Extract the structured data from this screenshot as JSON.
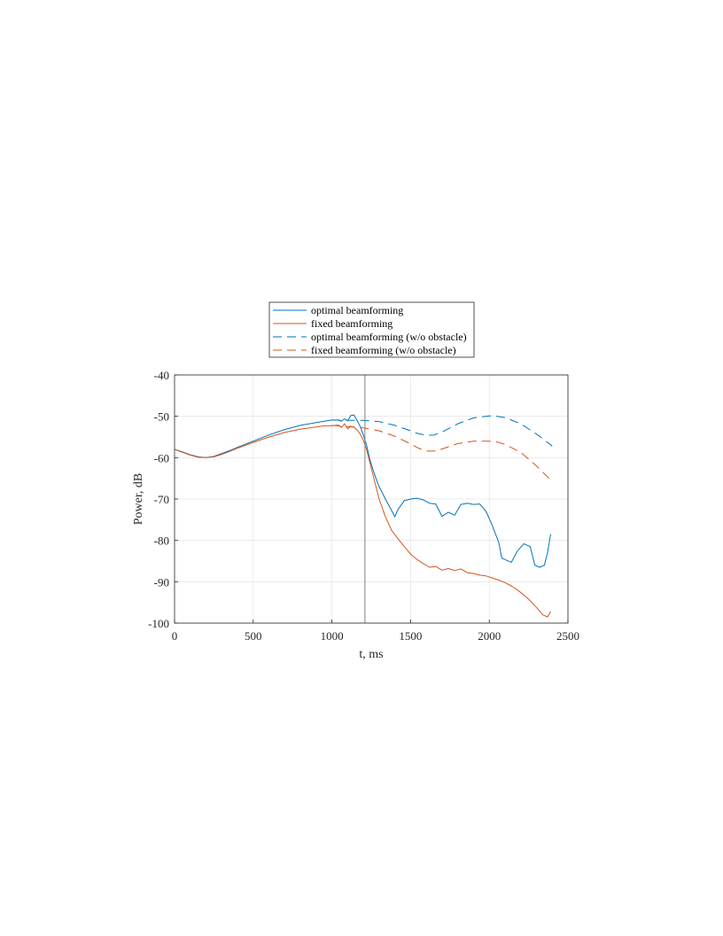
{
  "chart_data": {
    "type": "line",
    "xlabel": "t, ms",
    "ylabel": "Power, dB",
    "xlim": [
      0,
      2500
    ],
    "ylim": [
      -100,
      -40
    ],
    "xticks": [
      0,
      500,
      1000,
      1500,
      2000,
      2500
    ],
    "yticks": [
      -40,
      -50,
      -60,
      -70,
      -80,
      -90,
      -100
    ],
    "grid": true,
    "legend_position": "above-plot",
    "vertical_marker_x": 1210,
    "series": [
      {
        "name": "optimal beamforming",
        "color": "#0072BD",
        "dash": "solid",
        "x": [
          0,
          50,
          100,
          150,
          200,
          250,
          300,
          350,
          400,
          500,
          600,
          700,
          800,
          900,
          950,
          1000,
          1040,
          1060,
          1080,
          1100,
          1120,
          1140,
          1160,
          1180,
          1200,
          1220,
          1240,
          1260,
          1280,
          1300,
          1340,
          1380,
          1400,
          1420,
          1460,
          1500,
          1540,
          1580,
          1620,
          1660,
          1700,
          1740,
          1780,
          1820,
          1860,
          1900,
          1940,
          1980,
          2020,
          2060,
          2080,
          2110,
          2140,
          2180,
          2220,
          2260,
          2290,
          2320,
          2350,
          2370,
          2390
        ],
        "y": [
          -58,
          -58.6,
          -59.3,
          -59.8,
          -60,
          -59.7,
          -59,
          -58.3,
          -57.5,
          -56,
          -54.5,
          -53.2,
          -52.2,
          -51.5,
          -51.2,
          -50.9,
          -50.9,
          -51.2,
          -50.6,
          -51.1,
          -49.8,
          -49.7,
          -51,
          -52.5,
          -54.5,
          -57,
          -60.2,
          -62.8,
          -65,
          -67,
          -70,
          -72.8,
          -74.3,
          -72.5,
          -70.4,
          -70,
          -69.8,
          -70.2,
          -71,
          -71.2,
          -74.2,
          -73.2,
          -73.9,
          -71.3,
          -71,
          -71.3,
          -71.2,
          -73,
          -76.5,
          -80.5,
          -84.3,
          -84.8,
          -85.3,
          -82.5,
          -80.8,
          -81.5,
          -86,
          -86.5,
          -86,
          -83,
          -78.5
        ]
      },
      {
        "name": "fixed beamforming",
        "color": "#D95319",
        "dash": "solid",
        "x": [
          0,
          50,
          100,
          150,
          200,
          250,
          300,
          350,
          400,
          500,
          600,
          700,
          800,
          900,
          950,
          1000,
          1040,
          1060,
          1080,
          1100,
          1120,
          1140,
          1160,
          1180,
          1200,
          1220,
          1240,
          1260,
          1280,
          1300,
          1340,
          1380,
          1420,
          1460,
          1500,
          1540,
          1580,
          1620,
          1660,
          1700,
          1740,
          1780,
          1820,
          1860,
          1900,
          1940,
          1980,
          2020,
          2060,
          2100,
          2140,
          2180,
          2220,
          2260,
          2300,
          2340,
          2370,
          2390
        ],
        "y": [
          -58,
          -58.7,
          -59.4,
          -59.9,
          -60,
          -59.8,
          -59.2,
          -58.5,
          -57.7,
          -56.3,
          -55,
          -53.9,
          -53.1,
          -52.6,
          -52.3,
          -52.3,
          -52.1,
          -52.7,
          -51.8,
          -53,
          -52.4,
          -52.6,
          -53.3,
          -54.3,
          -55.8,
          -58,
          -61,
          -64,
          -67,
          -70,
          -74.3,
          -77.6,
          -79.6,
          -81.5,
          -83.3,
          -84.6,
          -85.6,
          -86.5,
          -86.3,
          -87.2,
          -86.8,
          -87.3,
          -86.9,
          -87.8,
          -88,
          -88.4,
          -88.6,
          -89.1,
          -89.6,
          -90.2,
          -91,
          -92,
          -93.2,
          -94.6,
          -96.2,
          -98,
          -98.5,
          -97.2
        ]
      },
      {
        "name": "optimal beamforming (w/o obstacle)",
        "color": "#0072BD",
        "dash": "dashed",
        "x": [
          1000,
          1100,
          1200,
          1300,
          1400,
          1500,
          1550,
          1600,
          1650,
          1700,
          1800,
          1900,
          2000,
          2050,
          2100,
          2200,
          2300,
          2350,
          2400
        ],
        "y": [
          -50.9,
          -51,
          -51,
          -51.3,
          -52.2,
          -53.5,
          -54.2,
          -54.6,
          -54.5,
          -53.8,
          -51.8,
          -50.4,
          -49.9,
          -50,
          -50.3,
          -51.8,
          -54.3,
          -55.7,
          -57.2
        ]
      },
      {
        "name": "fixed beamforming (w/o obstacle)",
        "color": "#D95319",
        "dash": "dashed",
        "x": [
          1000,
          1100,
          1200,
          1300,
          1400,
          1500,
          1550,
          1600,
          1650,
          1700,
          1800,
          1900,
          2000,
          2050,
          2100,
          2200,
          2300,
          2350,
          2400
        ],
        "y": [
          -52.2,
          -52.5,
          -52.8,
          -53.5,
          -54.8,
          -56.7,
          -57.7,
          -58.4,
          -58.4,
          -57.9,
          -56.6,
          -56,
          -56,
          -56.2,
          -56.8,
          -58.7,
          -62,
          -63.9,
          -65.8
        ]
      }
    ]
  }
}
